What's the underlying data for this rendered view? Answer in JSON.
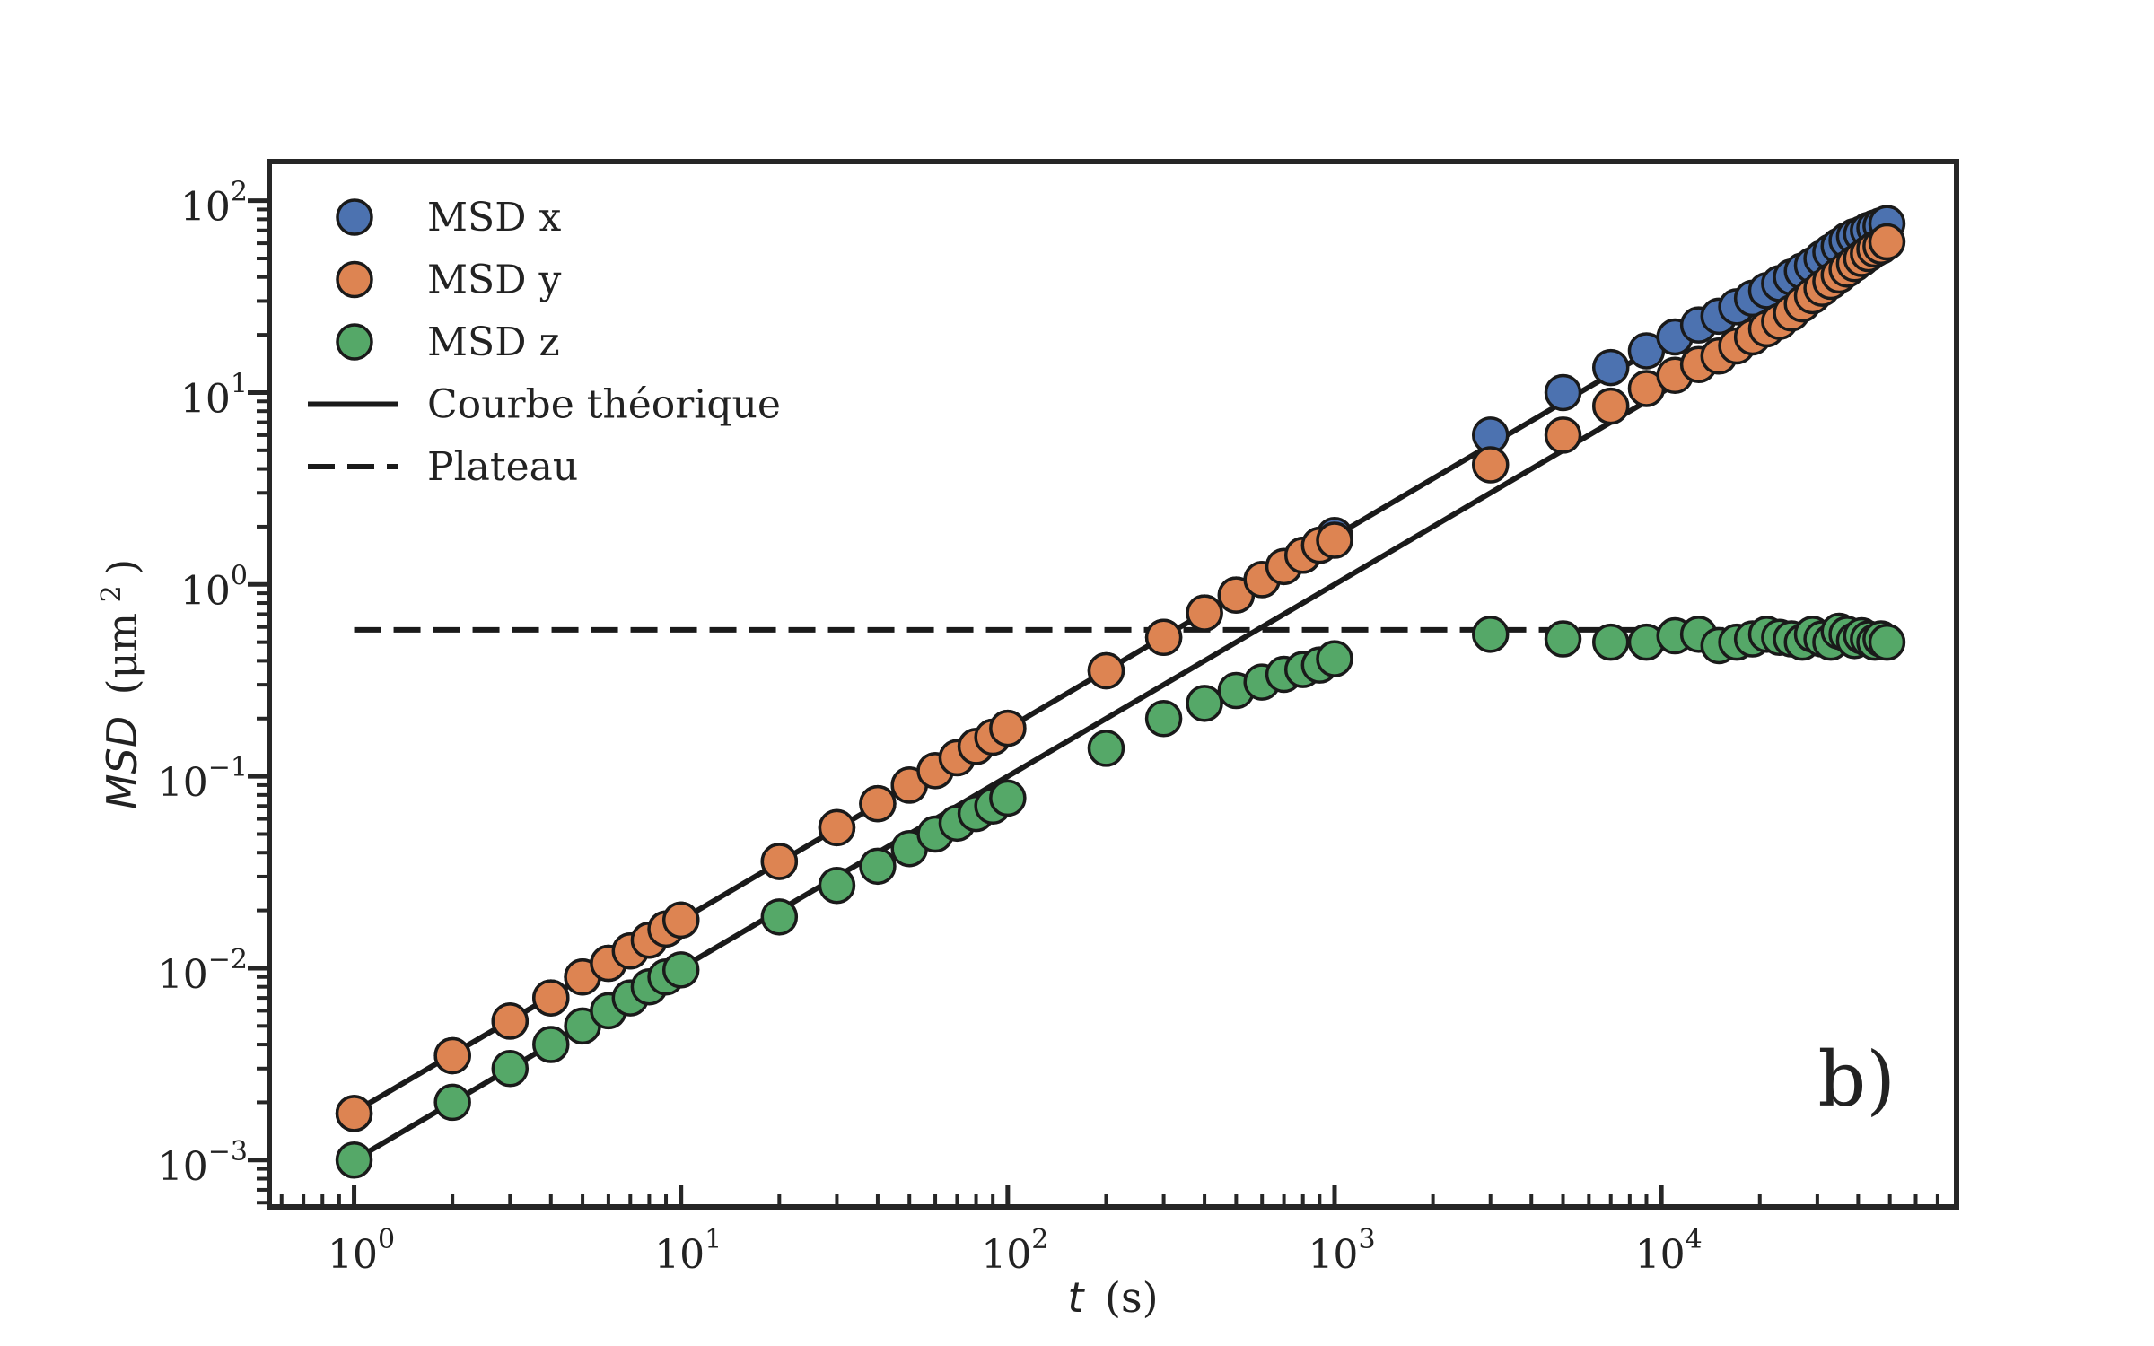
{
  "chart_data": {
    "type": "scatter",
    "xscale": "log",
    "yscale": "log",
    "xlim": [
      0.55,
      80000
    ],
    "ylim": [
      0.00057,
      160
    ],
    "x_tick_labels": [
      {
        "value": 1,
        "base": "10",
        "exp": "0"
      },
      {
        "value": 10,
        "base": "10",
        "exp": "1"
      },
      {
        "value": 100,
        "base": "10",
        "exp": "2"
      },
      {
        "value": 1000,
        "base": "10",
        "exp": "3"
      },
      {
        "value": 10000,
        "base": "10",
        "exp": "4"
      }
    ],
    "y_tick_labels": [
      {
        "value": 0.001,
        "base": "10",
        "exp": "−3"
      },
      {
        "value": 0.01,
        "base": "10",
        "exp": "−2"
      },
      {
        "value": 0.1,
        "base": "10",
        "exp": "−1"
      },
      {
        "value": 1,
        "base": "10",
        "exp": "0"
      },
      {
        "value": 10,
        "base": "10",
        "exp": "1"
      },
      {
        "value": 100,
        "base": "10",
        "exp": "2"
      }
    ],
    "xlabel": {
      "var": "t",
      "unit": "(s)"
    },
    "ylabel": {
      "var": "MSD",
      "unit_pre": "(μm",
      "unit_sup": "2",
      "unit_post": ")"
    },
    "annotation": "b)",
    "grid": false,
    "legend_position": "top-left",
    "series": [
      {
        "name": "MSD x",
        "color": "#4c72b0",
        "points": [
          [
            1,
            0.00175
          ],
          [
            2,
            0.0035
          ],
          [
            3,
            0.0053
          ],
          [
            4,
            0.007
          ],
          [
            5,
            0.009
          ],
          [
            6,
            0.0106
          ],
          [
            7,
            0.0123
          ],
          [
            8,
            0.014
          ],
          [
            9,
            0.016
          ],
          [
            10,
            0.0178
          ],
          [
            20,
            0.036
          ],
          [
            30,
            0.054
          ],
          [
            40,
            0.072
          ],
          [
            50,
            0.09
          ],
          [
            60,
            0.107
          ],
          [
            70,
            0.125
          ],
          [
            80,
            0.143
          ],
          [
            90,
            0.16
          ],
          [
            100,
            0.178
          ],
          [
            200,
            0.355
          ],
          [
            300,
            0.53
          ],
          [
            400,
            0.71
          ],
          [
            500,
            0.88
          ],
          [
            600,
            1.06
          ],
          [
            700,
            1.24
          ],
          [
            800,
            1.42
          ],
          [
            900,
            1.6
          ],
          [
            1000,
            1.8
          ],
          [
            3000,
            6.0
          ],
          [
            5000,
            10.0
          ],
          [
            7000,
            13.5
          ],
          [
            9000,
            16.5
          ],
          [
            11000,
            19.5
          ],
          [
            13000,
            22.5
          ],
          [
            15000,
            25
          ],
          [
            17000,
            28
          ],
          [
            19000,
            31
          ],
          [
            21000,
            34
          ],
          [
            23000,
            37
          ],
          [
            25000,
            40
          ],
          [
            27000,
            43
          ],
          [
            29000,
            46
          ],
          [
            31000,
            50
          ],
          [
            33000,
            54
          ],
          [
            35000,
            58
          ],
          [
            37000,
            62
          ],
          [
            39000,
            65
          ],
          [
            41000,
            67
          ],
          [
            43000,
            70
          ],
          [
            45000,
            72
          ],
          [
            47000,
            74
          ],
          [
            49000,
            76
          ]
        ]
      },
      {
        "name": "MSD y",
        "color": "#dd8452",
        "points": [
          [
            1,
            0.00175
          ],
          [
            2,
            0.0035
          ],
          [
            3,
            0.0053
          ],
          [
            4,
            0.007
          ],
          [
            5,
            0.009
          ],
          [
            6,
            0.0106
          ],
          [
            7,
            0.0123
          ],
          [
            8,
            0.014
          ],
          [
            9,
            0.016
          ],
          [
            10,
            0.0178
          ],
          [
            20,
            0.036
          ],
          [
            30,
            0.054
          ],
          [
            40,
            0.072
          ],
          [
            50,
            0.09
          ],
          [
            60,
            0.107
          ],
          [
            70,
            0.125
          ],
          [
            80,
            0.143
          ],
          [
            90,
            0.16
          ],
          [
            100,
            0.178
          ],
          [
            200,
            0.355
          ],
          [
            300,
            0.53
          ],
          [
            400,
            0.71
          ],
          [
            500,
            0.88
          ],
          [
            600,
            1.06
          ],
          [
            700,
            1.24
          ],
          [
            800,
            1.42
          ],
          [
            900,
            1.6
          ],
          [
            1000,
            1.7
          ],
          [
            3000,
            4.2
          ],
          [
            5000,
            6.0
          ],
          [
            7000,
            8.5
          ],
          [
            9000,
            10.5
          ],
          [
            11000,
            12.3
          ],
          [
            13000,
            14
          ],
          [
            15000,
            15.5
          ],
          [
            17000,
            17.5
          ],
          [
            19000,
            19.5
          ],
          [
            21000,
            21.5
          ],
          [
            23000,
            23.5
          ],
          [
            25000,
            26
          ],
          [
            27000,
            29
          ],
          [
            29000,
            32
          ],
          [
            31000,
            35
          ],
          [
            33000,
            38
          ],
          [
            35000,
            41
          ],
          [
            37000,
            44
          ],
          [
            39000,
            47
          ],
          [
            41000,
            50
          ],
          [
            43000,
            53
          ],
          [
            45000,
            56
          ],
          [
            47000,
            58
          ],
          [
            49000,
            61
          ]
        ]
      },
      {
        "name": "MSD z",
        "color": "#55a868",
        "points": [
          [
            1,
            0.001
          ],
          [
            2,
            0.002
          ],
          [
            3,
            0.003
          ],
          [
            4,
            0.004
          ],
          [
            5,
            0.005
          ],
          [
            6,
            0.006
          ],
          [
            7,
            0.007
          ],
          [
            8,
            0.008
          ],
          [
            9,
            0.009
          ],
          [
            10,
            0.0098
          ],
          [
            20,
            0.0185
          ],
          [
            30,
            0.027
          ],
          [
            40,
            0.034
          ],
          [
            50,
            0.042
          ],
          [
            60,
            0.05
          ],
          [
            70,
            0.057
          ],
          [
            80,
            0.064
          ],
          [
            90,
            0.07
          ],
          [
            100,
            0.077
          ],
          [
            200,
            0.14
          ],
          [
            300,
            0.2
          ],
          [
            400,
            0.24
          ],
          [
            500,
            0.28
          ],
          [
            600,
            0.31
          ],
          [
            700,
            0.34
          ],
          [
            800,
            0.36
          ],
          [
            900,
            0.38
          ],
          [
            1000,
            0.41
          ],
          [
            3000,
            0.55
          ],
          [
            5000,
            0.52
          ],
          [
            7000,
            0.5
          ],
          [
            9000,
            0.5
          ],
          [
            11000,
            0.54
          ],
          [
            13000,
            0.55
          ],
          [
            15000,
            0.48
          ],
          [
            17000,
            0.5
          ],
          [
            19000,
            0.52
          ],
          [
            21000,
            0.55
          ],
          [
            23000,
            0.53
          ],
          [
            25000,
            0.52
          ],
          [
            27000,
            0.5
          ],
          [
            29000,
            0.55
          ],
          [
            31000,
            0.52
          ],
          [
            33000,
            0.5
          ],
          [
            35000,
            0.57
          ],
          [
            37000,
            0.55
          ],
          [
            39000,
            0.51
          ],
          [
            41000,
            0.54
          ],
          [
            43000,
            0.52
          ],
          [
            45000,
            0.5
          ],
          [
            47000,
            0.52
          ],
          [
            49000,
            0.5
          ]
        ]
      }
    ],
    "lines": [
      {
        "name": "Courbe théorique",
        "style": "solid",
        "color": "#1a1a1a",
        "points": [
          [
            1,
            0.00178
          ],
          [
            50000,
            89
          ]
        ]
      },
      {
        "name": "Plateau",
        "style": "dashed",
        "color": "#1a1a1a",
        "points": [
          [
            1,
            0.58
          ],
          [
            50000,
            0.58
          ]
        ]
      },
      {
        "style": "solid",
        "color": "#1a1a1a",
        "points": [
          [
            1,
            0.001
          ],
          [
            50000,
            50
          ]
        ]
      }
    ],
    "legend": [
      {
        "label": "MSD x",
        "kind": "marker",
        "color": "#4c72b0"
      },
      {
        "label": "MSD y",
        "kind": "marker",
        "color": "#dd8452"
      },
      {
        "label": "MSD z",
        "kind": "marker",
        "color": "#55a868"
      },
      {
        "label": "Courbe théorique",
        "kind": "line-solid",
        "color": "#1a1a1a"
      },
      {
        "label": "Plateau",
        "kind": "line-dashed",
        "color": "#1a1a1a"
      }
    ]
  }
}
